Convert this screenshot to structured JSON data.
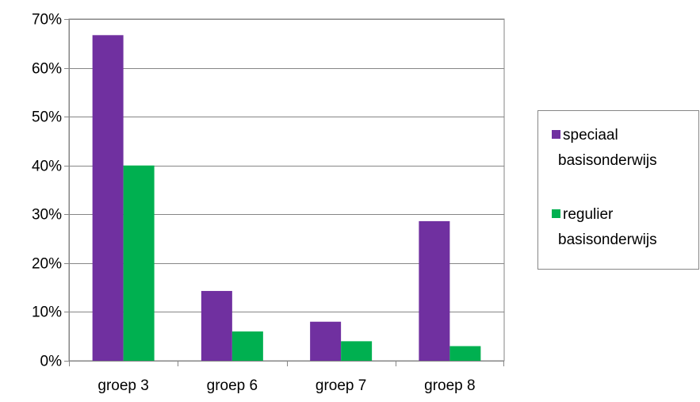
{
  "chart_data": {
    "type": "bar",
    "title": "",
    "xlabel": "",
    "ylabel": "",
    "categories": [
      "groep 3",
      "groep 6",
      "groep 7",
      "groep 8"
    ],
    "series": [
      {
        "name_lines": [
          "speciaal",
          "basisonderwijs"
        ],
        "color": "#7030A0",
        "values": [
          0.667,
          0.143,
          0.08,
          0.286
        ]
      },
      {
        "name_lines": [
          "regulier",
          "basisonderwijs"
        ],
        "color": "#00B050",
        "values": [
          0.4,
          0.06,
          0.04,
          0.03
        ]
      }
    ],
    "ylim": [
      0,
      0.7
    ],
    "yticks": [
      {
        "value": 0.0,
        "label": "0%"
      },
      {
        "value": 0.1,
        "label": "10%"
      },
      {
        "value": 0.2,
        "label": "20%"
      },
      {
        "value": 0.3,
        "label": "30%"
      },
      {
        "value": 0.4,
        "label": "40%"
      },
      {
        "value": 0.5,
        "label": "50%"
      },
      {
        "value": 0.6,
        "label": "60%"
      },
      {
        "value": 0.7,
        "label": "70%"
      }
    ],
    "grid": true,
    "gridline_color": "#868686",
    "legend_position": "right"
  }
}
